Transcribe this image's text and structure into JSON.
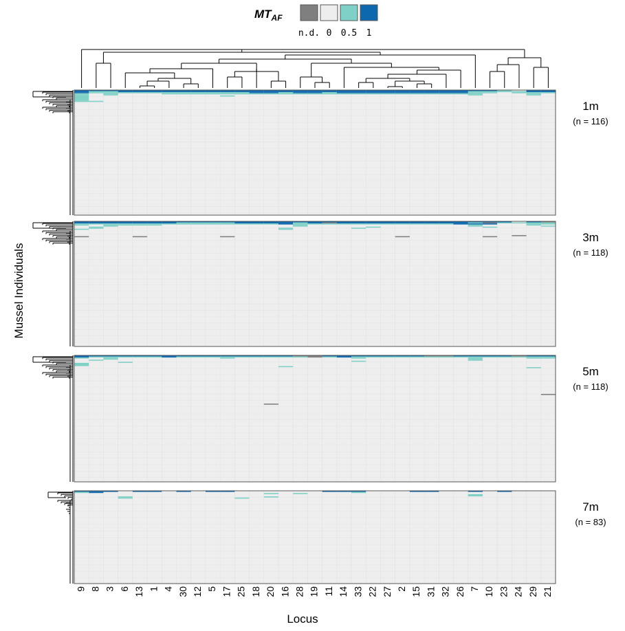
{
  "chart_data": {
    "type": "heatmap",
    "legend": {
      "title_main": "MT",
      "title_sub": "AF",
      "entries": [
        {
          "label": "n.d.",
          "color": "#7f7f7f"
        },
        {
          "label": "0",
          "color": "#eeeeee"
        },
        {
          "label": "0.5",
          "color": "#7fd0c6"
        },
        {
          "label": "1",
          "color": "#0e68ae"
        }
      ]
    },
    "xlabel": "Locus",
    "ylabel": "Mussel Individuals",
    "loci": [
      "9",
      "8",
      "3",
      "6",
      "13",
      "1",
      "4",
      "30",
      "12",
      "5",
      "17",
      "25",
      "18",
      "20",
      "16",
      "28",
      "19",
      "11",
      "14",
      "33",
      "22",
      "27",
      "2",
      "15",
      "31",
      "32",
      "26",
      "7",
      "10",
      "23",
      "24",
      "29",
      "21"
    ],
    "colors": {
      "nd": "#7f7f7f",
      "zero": "#eeeeee",
      "half": "#7fd0c6",
      "one": "#0e68ae",
      "mixed": "#3f9ecb"
    },
    "panels": [
      {
        "label": "1m",
        "n_label": "(n = 116)",
        "n": 116,
        "rows": [
          {
            "row": 0,
            "cells": {
              "9": 1,
              "8": 1,
              "3": 1,
              "6": 1,
              "13": 1,
              "1": 1,
              "4": 1,
              "30": 1,
              "12": 1,
              "5": 1,
              "17": 1,
              "25": 1,
              "18": 1,
              "20": 1,
              "16": 1,
              "28": 1,
              "19": 1,
              "11": 1,
              "14": 1,
              "33": 1,
              "22": 1,
              "27": 1,
              "2": 1,
              "15": 1,
              "31": 1,
              "32": 1,
              "26": 1,
              "7": 1,
              "10": 1,
              "23": 0.5,
              "24": 0,
              "29": 1,
              "21": 1
            }
          },
          {
            "row": 1,
            "cells": {
              "9": 1,
              "8": 0.5,
              "3": 0.5,
              "6": 1,
              "13": 1,
              "1": 1,
              "4": 1,
              "30": 1,
              "12": 1,
              "5": 1,
              "17": 1,
              "25": 1,
              "18": 1,
              "20": 1,
              "16": 1,
              "28": 1,
              "19": 1,
              "11": 1,
              "14": 1,
              "33": 1,
              "22": 1,
              "27": 1,
              "2": 1,
              "15": 1,
              "31": 1,
              "32": 1,
              "26": 1,
              "7": 0.5,
              "10": 0.5,
              "23": 0.5,
              "24": 0.5,
              "29": 1,
              "21": 1
            }
          },
          {
            "row": 2,
            "cells": {
              "9": 1,
              "8": 0.5,
              "3": 0.5,
              "6": 0.5,
              "13": 0.5,
              "1": 0.5,
              "4": 0.5,
              "30": 0.5,
              "12": 0.5,
              "5": 0.5,
              "17": 0.5,
              "25": 0.5,
              "18": 1,
              "20": 1,
              "16": 0.5,
              "28": 1,
              "19": 1,
              "11": 0.5,
              "14": 1,
              "33": 1,
              "22": 1,
              "27": 1,
              "2": 1,
              "15": 1,
              "31": 1,
              "32": 1,
              "26": 1,
              "7": 0.5,
              "10": 0.5,
              "23": 0,
              "24": 0.5,
              "29": 0.5,
              "21": 0.5
            }
          },
          {
            "row": 3,
            "cells": {
              "9": 0.5,
              "3": 0.5,
              "4": 0.5,
              "30": 0.5,
              "12": 0.5,
              "5": 0.5,
              "17": 0.5,
              "25": 0.5,
              "18": 0.5,
              "20": 0.5,
              "16": 0.5,
              "28": 0.5,
              "19": 0.5,
              "11": 0.5,
              "14": 0.5,
              "33": 0.5,
              "22": 0.5,
              "27": 0.5,
              "2": 0.5,
              "15": 0.5,
              "31": 0.5,
              "32": 0.5,
              "26": 0.5,
              "7": 0.5,
              "29": 0.5
            }
          },
          {
            "row": 4,
            "cells": {
              "9": 0.5,
              "3": 0.5,
              "7": 0.5,
              "29": 0.5
            }
          },
          {
            "row": 5,
            "cells": {
              "9": 0.5,
              "17": 0.5
            }
          },
          {
            "row": 6,
            "cells": {
              "9": 0.5
            }
          },
          {
            "row": 7,
            "cells": {
              "9": 0.5
            }
          },
          {
            "row": 8,
            "cells": {
              "9": 0.5
            }
          },
          {
            "row": 9,
            "cells": {
              "9": 0.5
            }
          },
          {
            "row": 10,
            "cells": {
              "9": 0.5,
              "8": 0.5
            }
          }
        ]
      },
      {
        "label": "3m",
        "n_label": "(n = 118)",
        "n": 118,
        "rows": [
          {
            "row": 0,
            "cells": {
              "9": 1,
              "8": 1,
              "3": 1,
              "6": 1,
              "13": 1,
              "1": 1,
              "4": 1,
              "30": 1,
              "12": 1,
              "5": 1,
              "17": 1,
              "25": 1,
              "18": 1,
              "20": 1,
              "16": 1,
              "28": 1,
              "19": 1,
              "11": 1,
              "14": 1,
              "33": 1,
              "22": 1,
              "27": 1,
              "2": 1,
              "15": 1,
              "31": 1,
              "32": 1,
              "26": 1,
              "7": 1,
              "10": 1,
              "23": 1,
              "24": 0,
              "29": 1,
              "21": "nd"
            }
          },
          {
            "row": 1,
            "cells": {
              "9": 1,
              "8": 1,
              "3": 1,
              "6": 1,
              "13": 1,
              "1": 1,
              "4": 1,
              "30": 0.5,
              "12": 0.5,
              "5": 0.5,
              "17": 0.5,
              "25": 1,
              "18": 1,
              "20": 1,
              "16": 1,
              "28": 0.5,
              "19": 1,
              "11": "nd",
              "14": 1,
              "33": 1,
              "22": 1,
              "27": 1,
              "2": 1,
              "15": 1,
              "31": 1,
              "32": 1,
              "26": 1,
              "7": 0.5,
              "10": "nd",
              "23": 0.5,
              "24": 0.5,
              "29": 0.5,
              "21": 0.5
            }
          },
          {
            "row": 2,
            "cells": {
              "9": 0.5,
              "8": 0.5,
              "3": 0.5,
              "6": 0.5,
              "13": 0.5,
              "1": 0.5,
              "4": 0.5,
              "30": 0.5,
              "12": 0.5,
              "5": 0.5,
              "17": 0.5,
              "25": 0.5,
              "18": 0.5,
              "20": 0.5,
              "16": 1,
              "28": 0.5,
              "19": 0.5,
              "11": 0.5,
              "14": 0.5,
              "33": 0.5,
              "22": 0.5,
              "27": 0.5,
              "2": 0.5,
              "15": 0.5,
              "31": 0.5,
              "32": 0.5,
              "26": 1,
              "7": 1,
              "10": 1,
              "23": 0,
              "24": 0,
              "29": 0.5,
              "21": 0.5
            }
          },
          {
            "row": 3,
            "cells": {
              "9": 0.5,
              "3": 0.5,
              "6": 0.5,
              "13": 0.5,
              "1": 0.5,
              "28": 0.5,
              "7": 0.5,
              "29": 0.5
            }
          },
          {
            "row": 4,
            "cells": {
              "3": 0.5,
              "28": 0.5,
              "7": 0.5,
              "21": 0.5
            }
          },
          {
            "row": 5,
            "cells": {
              "8": 0.5,
              "10": 0.5,
              "22": 0.5
            }
          },
          {
            "row": 6,
            "cells": {
              "8": 0.5,
              "16": 0.5,
              "33": 0.5
            }
          },
          {
            "row": 7,
            "cells": {
              "9": 0.5,
              "16": 0.5
            }
          },
          {
            "row": 13,
            "cells": {
              "24": "nd"
            }
          },
          {
            "row": 14,
            "cells": {
              "9": "nd",
              "13": "nd",
              "17": "nd",
              "2": "nd",
              "10": "nd"
            }
          }
        ]
      },
      {
        "label": "5m",
        "n_label": "(n = 118)",
        "n": 118,
        "rows": [
          {
            "row": 0,
            "cells": {
              "9": 1,
              "8": 1,
              "3": 1,
              "6": 1,
              "13": 1,
              "1": 1,
              "4": 1,
              "30": 1,
              "12": 1,
              "5": 1,
              "17": 1,
              "25": 1,
              "18": 1,
              "20": 1,
              "16": 1,
              "28": "nd",
              "19": "nd",
              "11": 1,
              "14": 1,
              "33": 1,
              "22": 1,
              "27": 1,
              "2": 1,
              "15": 1,
              "31": "nd",
              "32": "nd",
              "26": 1,
              "7": 1,
              "10": 1,
              "23": 1,
              "24": "nd",
              "29": 1,
              "21": 1
            }
          },
          {
            "row": 1,
            "cells": {
              "9": 1,
              "8": 0.5,
              "3": 0.5,
              "6": 0.5,
              "13": 0.5,
              "1": 0.5,
              "4": 1,
              "30": 0.5,
              "12": 0.5,
              "5": 0.5,
              "17": 0.5,
              "25": 0.5,
              "18": 0.5,
              "20": 0.5,
              "16": 0.5,
              "28": 0.5,
              "19": "nd",
              "11": 0.5,
              "14": 1,
              "33": 0.5,
              "22": 0.5,
              "27": 0.5,
              "2": 0.5,
              "15": 0.5,
              "31": 0.5,
              "32": 0.5,
              "26": 0.5,
              "7": 0.5,
              "10": 0.5,
              "23": 0.5,
              "24": 0.5,
              "29": 0.5,
              "21": 0.5
            }
          },
          {
            "row": 2,
            "cells": {
              "9": 0.5,
              "3": 0.5,
              "17": 0.5,
              "33": 0.5,
              "7": 0.5,
              "29": 0.5,
              "21": 0.5
            }
          },
          {
            "row": 3,
            "cells": {
              "3": 0.5,
              "7": 0.5
            }
          },
          {
            "row": 4,
            "cells": {
              "8": 0.5,
              "7": 0.5
            }
          },
          {
            "row": 5,
            "cells": {
              "33": 0.5
            }
          },
          {
            "row": 6,
            "cells": {
              "6": 0.5
            }
          },
          {
            "row": 7,
            "cells": {
              "9": 0.5
            }
          },
          {
            "row": 8,
            "cells": {
              "9": 0.5
            }
          },
          {
            "row": 9,
            "cells": {
              "9": 0.5
            }
          },
          {
            "row": 10,
            "cells": {
              "16": 0.5
            }
          },
          {
            "row": 11,
            "cells": {
              "29": 0.5
            }
          },
          {
            "row": 36,
            "cells": {
              "21": "nd"
            }
          },
          {
            "row": 45,
            "cells": {
              "20": "nd"
            }
          }
        ]
      },
      {
        "label": "7m",
        "n_label": "(n = 83)",
        "n": 83,
        "rows": [
          {
            "row": 0,
            "cells": {
              "9": 1,
              "8": 1,
              "3": 1,
              "13": 1,
              "1": 1,
              "30": 1,
              "5": 1,
              "17": 1,
              "11": 1,
              "14": 1,
              "33": 1,
              "15": 1,
              "31": 1,
              "7": 1,
              "23": 1
            }
          },
          {
            "row": 1,
            "cells": {
              "9": 0.5,
              "8": 1,
              "33": 0.5
            }
          },
          {
            "row": 2,
            "cells": {
              "28": 0.5,
              "20": 0.5
            }
          },
          {
            "row": 3,
            "cells": {
              "7": 0.5
            }
          },
          {
            "row": 4,
            "cells": {
              "7": 0.5
            }
          },
          {
            "row": 5,
            "cells": {
              "6": 0.5,
              "20": 0.5
            }
          },
          {
            "row": 6,
            "cells": {
              "6": 0.5,
              "25": 0.5
            }
          }
        ]
      }
    ]
  }
}
